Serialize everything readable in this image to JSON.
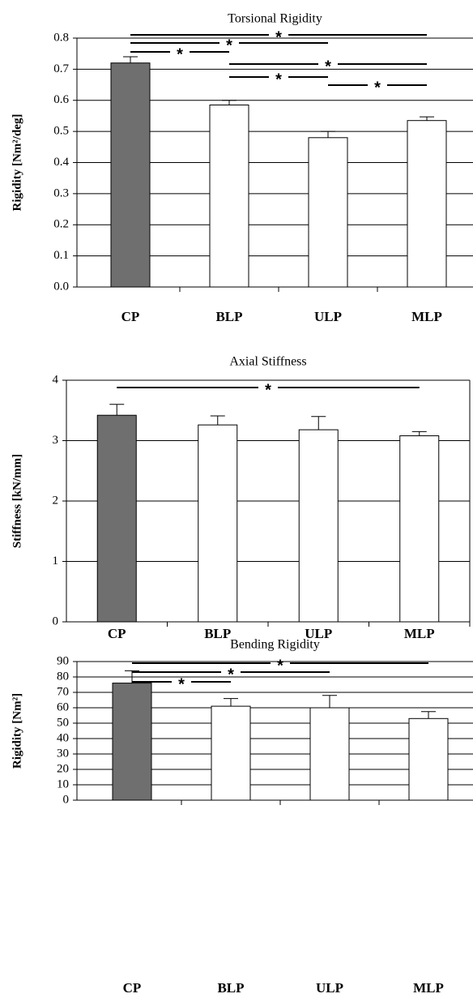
{
  "chart_data": [
    {
      "type": "bar",
      "title": "Torsional Rigidity",
      "y_label": "Rigidity [Nm²/deg]",
      "categories": [
        "CP",
        "BLP",
        "ULP",
        "MLP"
      ],
      "values": [
        0.72,
        0.585,
        0.48,
        0.535
      ],
      "errors": [
        0.02,
        0.015,
        0.02,
        0.012
      ],
      "colors": [
        "#6f6f6f",
        "#ffffff",
        "#ffffff",
        "#ffffff"
      ],
      "ylim": [
        0,
        0.8
      ],
      "yticks": [
        {
          "value": 0,
          "label": "0.0"
        },
        0.1,
        0.2,
        0.3,
        0.4,
        0.5,
        0.6,
        0.7,
        0.8
      ],
      "grid": true,
      "significance": [
        {
          "from": "CP",
          "to": "MLP",
          "label": "*"
        },
        {
          "from": "CP",
          "to": "ULP",
          "label": "*"
        },
        {
          "from": "CP",
          "to": "BLP",
          "label": "*"
        },
        {
          "from": "BLP",
          "to": "MLP",
          "label": "*"
        },
        {
          "from": "BLP",
          "to": "ULP",
          "label": "*"
        },
        {
          "from": "ULP",
          "to": "MLP",
          "label": "*"
        }
      ]
    },
    {
      "type": "bar",
      "title": "Axial Stiffness",
      "y_label": "Stiffness [kN/mm]",
      "categories": [
        "CP",
        "BLP",
        "ULP",
        "MLP"
      ],
      "values": [
        3.42,
        3.26,
        3.18,
        3.08
      ],
      "errors": [
        0.18,
        0.15,
        0.22,
        0.07
      ],
      "colors": [
        "#6f6f6f",
        "#ffffff",
        "#ffffff",
        "#ffffff"
      ],
      "ylim": [
        0,
        4
      ],
      "yticks": [
        0,
        1,
        2,
        3,
        4
      ],
      "grid": true,
      "significance": [
        {
          "from": "CP",
          "to": "MLP",
          "label": "*"
        }
      ]
    },
    {
      "type": "bar",
      "title": "Bending Rigidity",
      "y_label": "Rigidity [Nm²]",
      "categories": [
        "CP",
        "BLP",
        "ULP",
        "MLP"
      ],
      "values": [
        76,
        61,
        60,
        53
      ],
      "errors": [
        8,
        5,
        8,
        4.5
      ],
      "colors": [
        "#6f6f6f",
        "#ffffff",
        "#ffffff",
        "#ffffff"
      ],
      "ylim": [
        0,
        90
      ],
      "yticks": [
        0,
        10,
        20,
        30,
        40,
        50,
        60,
        70,
        80,
        90
      ],
      "grid": true,
      "significance": [
        {
          "from": "CP",
          "to": "MLP",
          "label": "*"
        },
        {
          "from": "CP",
          "to": "ULP",
          "label": "*"
        },
        {
          "from": "CP",
          "to": "BLP",
          "label": "*"
        }
      ]
    }
  ]
}
